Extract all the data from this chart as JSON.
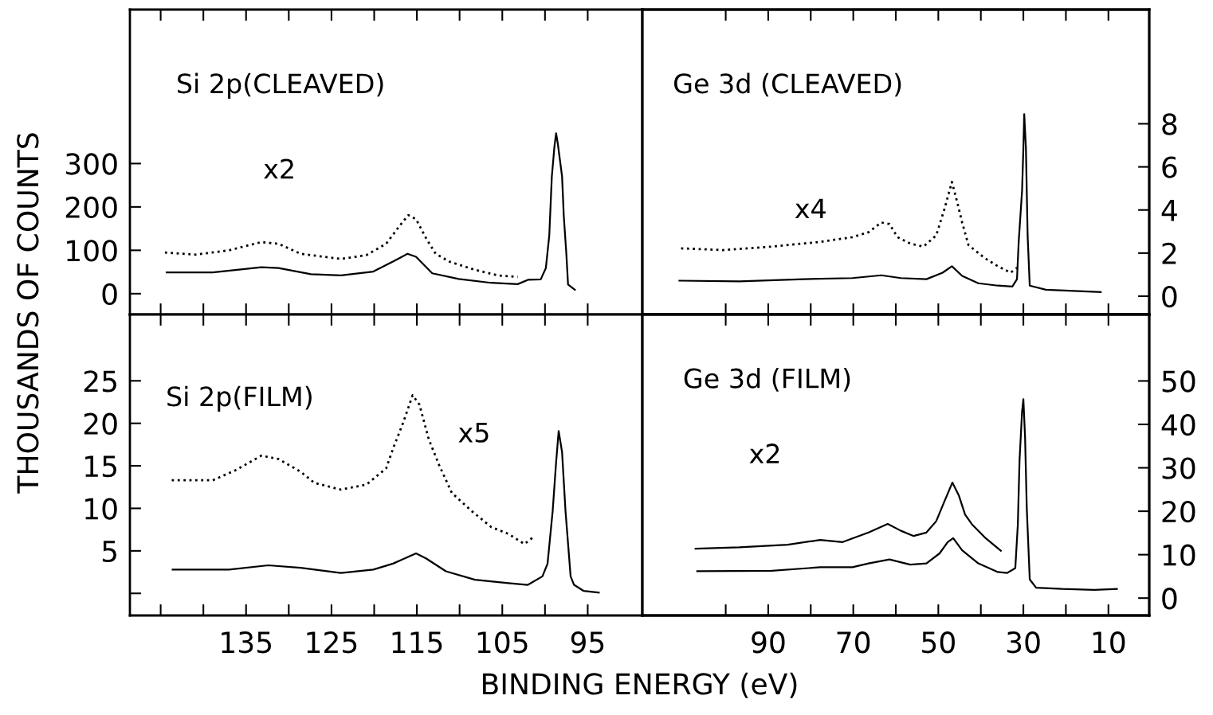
{
  "chart_data": [
    {
      "type": "line",
      "title": "Si 2p(CLEAVED)",
      "ylabel": "THOUSANDS OF COUNTS",
      "annotations": [
        "x2"
      ],
      "tick_labels": "y",
      "grid": false,
      "legend": false,
      "xlim": [
        148.6,
        88.6
      ],
      "xticks": [
        {
          "value": 145,
          "label": null
        },
        {
          "value": 140,
          "label": null
        },
        {
          "value": 135,
          "label": null
        },
        {
          "value": 130,
          "label": null
        },
        {
          "value": 125,
          "label": null
        },
        {
          "value": 120,
          "label": null
        },
        {
          "value": 115,
          "label": null
        },
        {
          "value": 110,
          "label": null
        },
        {
          "value": 105,
          "label": null
        },
        {
          "value": 100,
          "label": null
        },
        {
          "value": 95,
          "label": null
        }
      ],
      "ylim": [
        -48,
        655
      ],
      "yticks": [
        0,
        100,
        200,
        300
      ],
      "series": [
        {
          "color": "#000000",
          "line_style": "dotted",
          "x": [
            144.5,
            140.9,
            137.0,
            133.2,
            131.2,
            128.6,
            123.9,
            120.9,
            118.6,
            117.0,
            116.0,
            115.1,
            113.9,
            112.8,
            111.2,
            108.2,
            105.5,
            103.2
          ],
          "values": [
            95,
            90,
            100,
            119,
            115,
            92,
            80,
            89,
            115,
            157,
            181,
            172,
            127,
            92,
            74,
            55,
            42,
            39
          ]
        },
        {
          "color": "#000000",
          "line_style": "solid",
          "x": [
            144.3,
            138.9,
            133.2,
            131.2,
            127.4,
            123.9,
            120.1,
            117.8,
            116.1,
            115.1,
            113.2,
            110.1,
            106.3,
            103.2,
            102.0,
            100.5,
            99.9,
            99.5,
            99.2,
            98.9,
            98.7,
            98.5,
            98.0,
            97.8,
            97.5,
            97.3,
            96.5
          ],
          "values": [
            49,
            49,
            61,
            59,
            45,
            42,
            51,
            74,
            92,
            85,
            47,
            34,
            25,
            22,
            32,
            33,
            59,
            134,
            270,
            338,
            370,
            346,
            270,
            179,
            92,
            21,
            9
          ]
        }
      ]
    },
    {
      "type": "line",
      "title": "Ge 3d (CLEAVED)",
      "annotations": [
        "x4"
      ],
      "tick_labels": "y",
      "grid": false,
      "legend": false,
      "xlim": [
        119.6,
        0.4
      ],
      "xticks": [
        {
          "value": 100,
          "label": null
        },
        {
          "value": 90,
          "label": null
        },
        {
          "value": 80,
          "label": null
        },
        {
          "value": 70,
          "label": null
        },
        {
          "value": 60,
          "label": null
        },
        {
          "value": 50,
          "label": null
        },
        {
          "value": 40,
          "label": null
        },
        {
          "value": 30,
          "label": null
        },
        {
          "value": 20,
          "label": null
        },
        {
          "value": 10,
          "label": null
        }
      ],
      "y2lim": [
        -0.85,
        13.3
      ],
      "y2ticks": [
        0,
        2,
        4,
        6,
        8
      ],
      "series": [
        {
          "color": "#000000",
          "axis": "y2",
          "line_style": "dotted",
          "x": [
            110.5,
            100.6,
            89.2,
            77.8,
            70.2,
            66.4,
            63.4,
            61.5,
            59.6,
            56.6,
            53.5,
            50.5,
            48.6,
            46.8,
            45.5,
            44.4,
            42.9,
            39.1,
            36.0,
            33.0,
            31.5
          ],
          "values": [
            2.22,
            2.14,
            2.3,
            2.52,
            2.74,
            2.97,
            3.42,
            3.35,
            2.74,
            2.44,
            2.3,
            2.82,
            4.02,
            5.3,
            4.32,
            3.42,
            2.37,
            1.77,
            1.39,
            1.09,
            1.32
          ]
        },
        {
          "color": "#000000",
          "axis": "y2",
          "line_style": "solid",
          "x": [
            110.9,
            96.8,
            81.6,
            70.2,
            63.4,
            58.8,
            52.8,
            49.0,
            46.8,
            44.4,
            40.6,
            36.0,
            32.6,
            31.5,
            31.1,
            30.3,
            30.0,
            29.8,
            29.4,
            29.0,
            28.5,
            24.7,
            11.8
          ],
          "values": [
            0.72,
            0.69,
            0.79,
            0.84,
            0.97,
            0.84,
            0.79,
            1.09,
            1.39,
            0.94,
            0.6,
            0.49,
            0.45,
            0.79,
            2.52,
            4.92,
            6.87,
            8.45,
            6.87,
            2.82,
            0.49,
            0.3,
            0.19
          ]
        }
      ]
    },
    {
      "type": "line",
      "title": "Si 2p(FILM)",
      "xlabel": "BINDING ENERGY (eV)",
      "annotations": [
        "x5"
      ],
      "grid": false,
      "legend": false,
      "xlim": [
        148.6,
        88.6
      ],
      "xticks": [
        {
          "value": 145,
          "label": null
        },
        {
          "value": 140,
          "label": null
        },
        135,
        {
          "value": 130,
          "label": null
        },
        125,
        {
          "value": 120,
          "label": null
        },
        115,
        {
          "value": 110,
          "label": null
        },
        105,
        {
          "value": 100,
          "label": null
        },
        95
      ],
      "ylim": [
        -2.6,
        32.8
      ],
      "yticks": [
        {
          "value": 0,
          "label": null
        },
        5,
        10,
        15,
        20,
        25
      ],
      "series": [
        {
          "color": "#000000",
          "line_style": "dotted",
          "x": [
            143.7,
            138.9,
            136.2,
            133.2,
            131.2,
            128.6,
            127.0,
            123.9,
            120.9,
            118.6,
            117.8,
            116.6,
            115.5,
            114.7,
            113.6,
            112.4,
            110.9,
            108.6,
            106.3,
            104.3,
            102.4,
            101.4
          ],
          "values": [
            13.3,
            13.3,
            14.5,
            16.2,
            15.8,
            14.3,
            13.0,
            12.2,
            12.8,
            14.7,
            17.0,
            20.1,
            23.3,
            22.2,
            18.1,
            15.1,
            11.8,
            9.7,
            7.8,
            7.0,
            5.8,
            6.6
          ]
        },
        {
          "color": "#000000",
          "line_style": "solid",
          "x": [
            143.6,
            137.0,
            132.4,
            128.6,
            123.9,
            120.1,
            117.8,
            115.1,
            113.9,
            111.6,
            108.2,
            104.3,
            102.0,
            100.3,
            99.7,
            99.1,
            98.7,
            98.4,
            98.0,
            97.6,
            97.0,
            96.6,
            95.5,
            93.7
          ],
          "values": [
            2.8,
            2.8,
            3.3,
            3.0,
            2.4,
            2.8,
            3.5,
            4.7,
            4.1,
            2.6,
            1.6,
            1.2,
            1.0,
            2.0,
            3.5,
            9.7,
            15.4,
            19.1,
            16.6,
            9.7,
            2.0,
            1.0,
            0.3,
            0.1
          ]
        }
      ]
    },
    {
      "type": "line",
      "title": "Ge 3d (FILM)",
      "annotations": [
        "x2"
      ],
      "grid": false,
      "legend": false,
      "xlim": [
        119.6,
        0.4
      ],
      "xticks": [
        {
          "value": 100,
          "label": null
        },
        90,
        {
          "value": 80,
          "label": null
        },
        70,
        {
          "value": 60,
          "label": null
        },
        50,
        {
          "value": 40,
          "label": null
        },
        30,
        {
          "value": 20,
          "label": null
        },
        10
      ],
      "y2lim": [
        -4.0,
        65.3
      ],
      "y2ticks": [
        0,
        10,
        20,
        30,
        40,
        50
      ],
      "series": [
        {
          "color": "#000000",
          "axis": "y2",
          "line_style": "solid",
          "x": [
            107.1,
            96.8,
            85.4,
            77.8,
            72.5,
            66.4,
            61.9,
            58.8,
            55.8,
            52.8,
            50.5,
            48.6,
            46.7,
            45.2,
            43.7,
            42.1,
            39.1,
            35.3
          ],
          "values": [
            11.4,
            11.7,
            12.3,
            13.4,
            12.9,
            15.1,
            17.1,
            15.5,
            14.3,
            15.1,
            17.7,
            22.2,
            26.6,
            23.7,
            19.2,
            17.0,
            14.0,
            10.9
          ]
        },
        {
          "color": "#000000",
          "axis": "y2",
          "line_style": "solid",
          "x": [
            106.7,
            89.2,
            77.8,
            70.2,
            66.4,
            61.5,
            56.6,
            52.8,
            49.7,
            47.8,
            46.5,
            44.4,
            40.6,
            36.0,
            33.8,
            31.9,
            31.3,
            30.9,
            30.3,
            30.0,
            29.6,
            29.2,
            28.5,
            27.0,
            20.9,
            13.3,
            8.0
          ],
          "values": [
            6.2,
            6.3,
            7.1,
            7.1,
            8.0,
            8.9,
            7.7,
            8.0,
            10.3,
            12.9,
            13.8,
            11.0,
            8.0,
            6.0,
            5.8,
            6.9,
            17.0,
            31.8,
            43.0,
            45.8,
            37.0,
            20.7,
            4.3,
            2.4,
            2.1,
            1.9,
            2.1
          ]
        }
      ]
    }
  ]
}
